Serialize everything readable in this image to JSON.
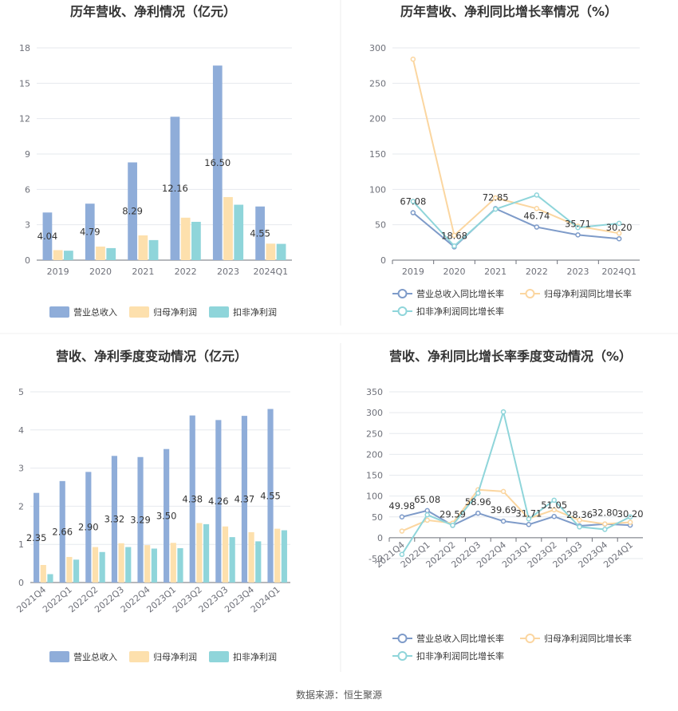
{
  "colors": {
    "revenue": "#8fadd9",
    "parent_profit": "#fde0ad",
    "deducted_profit": "#8fd5da",
    "revenue_line": "#7e9bc9",
    "parent_line": "#fbd6a0",
    "deducted_line": "#8fd5da"
  },
  "footer": {
    "source": "数据来源：恒生聚源"
  },
  "chart_data": [
    {
      "id": "annual-amount",
      "type": "bar",
      "title": "历年营收、净利情况（亿元）",
      "categories": [
        "2019",
        "2020",
        "2021",
        "2022",
        "2023",
        "2024Q1"
      ],
      "ylim": [
        0,
        18
      ],
      "yticks": [
        0,
        3,
        6,
        9,
        12,
        15,
        18
      ],
      "grid": true,
      "legend_position": "bottom",
      "series": [
        {
          "name": "营业总收入",
          "values": [
            4.04,
            4.79,
            8.29,
            12.16,
            16.5,
            4.55
          ],
          "labels": [
            "4.04",
            "4.79",
            "8.29",
            "12.16",
            "16.50",
            "4.55"
          ]
        },
        {
          "name": "归母净利润",
          "values": [
            0.85,
            1.15,
            2.1,
            3.6,
            5.35,
            1.4
          ]
        },
        {
          "name": "扣非净利润",
          "values": [
            0.8,
            1.02,
            1.7,
            3.25,
            4.7,
            1.38
          ]
        }
      ]
    },
    {
      "id": "annual-growth",
      "type": "line",
      "title": "历年营收、净利同比增长率情况（%）",
      "categories": [
        "2019",
        "2020",
        "2021",
        "2022",
        "2023",
        "2024Q1"
      ],
      "ylim": [
        0,
        300
      ],
      "yticks": [
        0,
        50,
        100,
        150,
        200,
        250,
        300
      ],
      "grid": true,
      "legend_position": "bottom",
      "series": [
        {
          "name": "营业总收入同比增长率",
          "values": [
            67.08,
            18.68,
            72.85,
            46.74,
            35.71,
            30.2
          ],
          "labels": [
            "67.08",
            "18.68",
            "72.85",
            "46.74",
            "35.71",
            "30.20"
          ]
        },
        {
          "name": "归母净利润同比增长率",
          "values": [
            284,
            35,
            88,
            73,
            48,
            38
          ]
        },
        {
          "name": "扣非净利润同比增长率",
          "values": [
            83,
            20,
            72,
            92,
            46,
            52
          ]
        }
      ]
    },
    {
      "id": "quarterly-amount",
      "type": "bar",
      "title": "营收、净利季度变动情况（亿元）",
      "categories": [
        "2021Q4",
        "2022Q1",
        "2022Q2",
        "2022Q3",
        "2022Q4",
        "2023Q1",
        "2023Q2",
        "2023Q3",
        "2023Q4",
        "2024Q1"
      ],
      "ylim": [
        0,
        5
      ],
      "yticks": [
        0,
        1,
        2,
        3,
        4,
        5
      ],
      "grid": true,
      "legend_position": "bottom",
      "series": [
        {
          "name": "营业总收入",
          "values": [
            2.35,
            2.66,
            2.9,
            3.32,
            3.29,
            3.5,
            4.38,
            4.26,
            4.37,
            4.55
          ],
          "labels": [
            "2.35",
            "2.66",
            "2.90",
            "3.32",
            "3.29",
            "3.50",
            "4.38",
            "4.26",
            "4.37",
            "4.55"
          ]
        },
        {
          "name": "归母净利润",
          "values": [
            0.46,
            0.67,
            0.93,
            1.03,
            0.98,
            1.04,
            1.56,
            1.47,
            1.32,
            1.41
          ]
        },
        {
          "name": "扣非净利润",
          "values": [
            0.22,
            0.6,
            0.8,
            0.93,
            0.89,
            0.9,
            1.53,
            1.19,
            1.08,
            1.37
          ]
        }
      ]
    },
    {
      "id": "quarterly-growth",
      "type": "line",
      "title": "营收、净利同比增长率季度变动情况（%）",
      "categories": [
        "2021Q4",
        "2022Q1",
        "2022Q2",
        "2022Q3",
        "2022Q4",
        "2023Q1",
        "2023Q2",
        "2023Q3",
        "2023Q4",
        "2024Q1"
      ],
      "ylim": [
        -50,
        350
      ],
      "yticks": [
        -50,
        0,
        50,
        100,
        150,
        200,
        250,
        300,
        350
      ],
      "grid": true,
      "legend_position": "bottom",
      "series": [
        {
          "name": "营业总收入同比增长率",
          "values": [
            49.98,
            65.08,
            29.59,
            58.96,
            39.69,
            31.71,
            51.05,
            28.36,
            32.8,
            30.2
          ],
          "labels": [
            "49.98",
            "65.08",
            "29.59",
            "58.96",
            "39.69",
            "31.71",
            "51.05",
            "28.36",
            "32.80",
            "30.20"
          ]
        },
        {
          "name": "归母净利润同比增长率",
          "values": [
            16,
            42,
            35,
            115,
            111,
            46,
            67,
            42,
            33,
            37
          ]
        },
        {
          "name": "扣非净利润同比增长率",
          "values": [
            -40,
            55,
            30,
            107,
            302,
            45,
            90,
            26,
            20,
            50
          ]
        }
      ]
    }
  ]
}
